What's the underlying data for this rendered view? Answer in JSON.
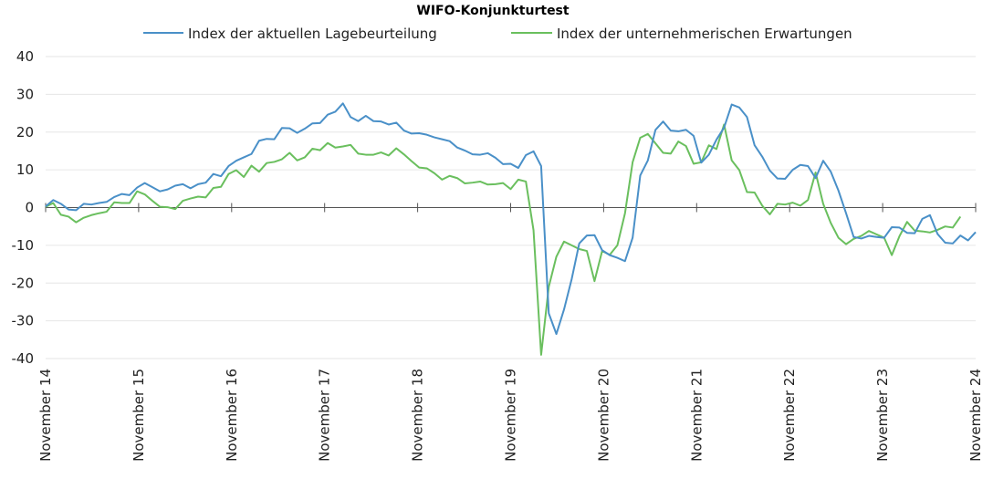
{
  "chart_data": {
    "type": "line",
    "title": "WIFO-Konjunkturtest",
    "xlabel": "",
    "ylabel": "",
    "ylim": [
      -40,
      40
    ],
    "yticks": [
      40,
      30,
      20,
      10,
      0,
      -10,
      -20,
      -30,
      -40
    ],
    "xtick_labels": [
      "November 14",
      "November 15",
      "November 16",
      "November 17",
      "November 18",
      "November 19",
      "November 20",
      "November 21",
      "November 22",
      "November 23",
      "November 24"
    ],
    "grid": "horizontal",
    "legend_position": "top",
    "colors": {
      "lage": "#4a90c8",
      "erw": "#6abf5e"
    },
    "series": [
      {
        "name": "Index der aktuellen Lagebeurteilung",
        "values": [
          0.3,
          2.0,
          1.0,
          -0.5,
          -0.7,
          1.0,
          0.8,
          1.2,
          1.5,
          2.8,
          3.6,
          3.3,
          5.3,
          6.5,
          5.4,
          4.3,
          4.8,
          5.8,
          6.2,
          5.1,
          6.2,
          6.6,
          8.9,
          8.3,
          11.0,
          12.4,
          13.3,
          14.2,
          17.7,
          18.2,
          18.1,
          21.1,
          21.0,
          19.8,
          20.9,
          22.3,
          22.4,
          24.6,
          25.4,
          27.6,
          24.0,
          22.9,
          24.3,
          22.9,
          22.8,
          22.0,
          22.5,
          20.4,
          19.6,
          19.7,
          19.3,
          18.6,
          18.1,
          17.6,
          15.9,
          15.1,
          14.1,
          14.0,
          14.4,
          13.2,
          11.5,
          11.6,
          10.5,
          13.9,
          14.9,
          11.0,
          -28.0,
          -33.5,
          -27.0,
          -19.0,
          -9.5,
          -7.4,
          -7.3,
          -11.3,
          -12.6,
          -13.3,
          -14.2,
          -8.0,
          8.5,
          12.5,
          20.6,
          22.8,
          20.4,
          20.2,
          20.6,
          19.0,
          11.9,
          14.0,
          18.0,
          21.2,
          27.3,
          26.5,
          24.0,
          16.5,
          13.5,
          9.8,
          7.7,
          7.6,
          10.0,
          11.3,
          11.0,
          7.8,
          12.4,
          9.5,
          4.5,
          -1.5,
          -7.8,
          -8.2,
          -7.5,
          -7.8,
          -8.0,
          -5.2,
          -5.3,
          -6.7,
          -6.8,
          -3.0,
          -2.0,
          -7.0,
          -9.3,
          -9.5,
          -7.4,
          -8.7,
          -6.5
        ]
      },
      {
        "name": "Index der unternehmerischen Erwartungen",
        "values": [
          0.2,
          1.2,
          -1.9,
          -2.4,
          -3.9,
          -2.7,
          -2.0,
          -1.5,
          -1.1,
          1.4,
          1.2,
          1.2,
          4.3,
          3.5,
          1.8,
          0.2,
          0.1,
          -0.4,
          1.8,
          2.4,
          2.9,
          2.7,
          5.2,
          5.5,
          8.9,
          9.9,
          8.1,
          11.1,
          9.5,
          11.8,
          12.1,
          12.8,
          14.5,
          12.5,
          13.3,
          15.6,
          15.2,
          17.1,
          15.9,
          16.2,
          16.6,
          14.3,
          14.0,
          14.0,
          14.6,
          13.8,
          15.7,
          14.1,
          12.3,
          10.6,
          10.4,
          9.1,
          7.4,
          8.4,
          7.8,
          6.4,
          6.6,
          6.9,
          6.1,
          6.2,
          6.5,
          4.9,
          7.4,
          6.9,
          -6.0,
          -39.0,
          -21.0,
          -13.0,
          -9.0,
          -10.0,
          -11.0,
          -11.5,
          -19.5,
          -11.5,
          -12.5,
          -10.0,
          -1.5,
          12.0,
          18.5,
          19.5,
          17.0,
          14.5,
          14.3,
          17.5,
          16.3,
          11.6,
          12.0,
          16.5,
          15.5,
          22.0,
          12.5,
          9.9,
          4.1,
          4.0,
          0.5,
          -1.8,
          1.0,
          0.8,
          1.3,
          0.5,
          2.0,
          9.3,
          1.0,
          -4.1,
          -8.0,
          -9.7,
          -8.3,
          -7.5,
          -6.2,
          -7.1,
          -8.0,
          -12.6,
          -7.6,
          -3.8,
          -6.1,
          -6.3,
          -6.6,
          -5.9,
          -5.0,
          -5.3,
          -2.4
        ]
      }
    ]
  }
}
